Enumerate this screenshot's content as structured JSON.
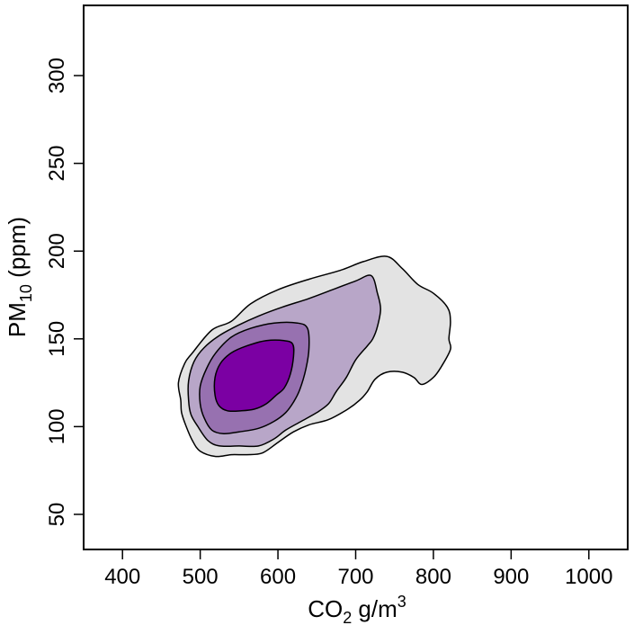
{
  "chart_data": {
    "type": "contour",
    "title": "",
    "xlabel": {
      "base": "CO",
      "sub": "2",
      "unit": " g/m",
      "sup": "3"
    },
    "ylabel": {
      "base": "PM",
      "sub": "10",
      "unit": " (ppm)"
    },
    "xlim": [
      350,
      1050
    ],
    "ylim": [
      30,
      340
    ],
    "xticks": [
      400,
      500,
      600,
      700,
      800,
      900,
      1000
    ],
    "yticks": [
      50,
      100,
      150,
      200,
      250,
      300
    ],
    "grid": false,
    "legend": "none",
    "levels": [
      {
        "fill": "#e3e3e3",
        "points": [
          [
            475,
            115
          ],
          [
            472,
            125
          ],
          [
            480,
            136
          ],
          [
            490,
            142
          ],
          [
            515,
            155
          ],
          [
            540,
            160
          ],
          [
            565,
            170
          ],
          [
            600,
            178
          ],
          [
            640,
            184
          ],
          [
            680,
            189
          ],
          [
            710,
            194
          ],
          [
            740,
            197
          ],
          [
            760,
            190
          ],
          [
            780,
            181
          ],
          [
            800,
            176
          ],
          [
            818,
            168
          ],
          [
            822,
            160
          ],
          [
            820,
            150
          ],
          [
            822,
            144
          ],
          [
            810,
            134
          ],
          [
            800,
            128
          ],
          [
            785,
            124
          ],
          [
            775,
            128
          ],
          [
            760,
            131
          ],
          [
            740,
            131
          ],
          [
            725,
            127
          ],
          [
            715,
            120
          ],
          [
            705,
            115
          ],
          [
            690,
            110
          ],
          [
            665,
            104
          ],
          [
            640,
            101
          ],
          [
            620,
            97
          ],
          [
            600,
            91
          ],
          [
            580,
            85
          ],
          [
            560,
            84
          ],
          [
            540,
            84
          ],
          [
            520,
            83
          ],
          [
            500,
            86
          ],
          [
            490,
            92
          ],
          [
            482,
            100
          ],
          [
            476,
            108
          ]
        ]
      },
      {
        "fill": "#b8a6c8",
        "points": [
          [
            485,
            115
          ],
          [
            485,
            126
          ],
          [
            492,
            137
          ],
          [
            505,
            145
          ],
          [
            525,
            152
          ],
          [
            550,
            158
          ],
          [
            575,
            163
          ],
          [
            605,
            168
          ],
          [
            640,
            173
          ],
          [
            670,
            178
          ],
          [
            700,
            183
          ],
          [
            720,
            186
          ],
          [
            728,
            176
          ],
          [
            732,
            167
          ],
          [
            728,
            157
          ],
          [
            722,
            150
          ],
          [
            715,
            146
          ],
          [
            700,
            138
          ],
          [
            688,
            128
          ],
          [
            675,
            120
          ],
          [
            665,
            113
          ],
          [
            650,
            108
          ],
          [
            630,
            103
          ],
          [
            610,
            98
          ],
          [
            595,
            93
          ],
          [
            575,
            89
          ],
          [
            550,
            89
          ],
          [
            525,
            89
          ],
          [
            510,
            92
          ],
          [
            497,
            100
          ],
          [
            488,
            107
          ]
        ]
      },
      {
        "fill": "#9771b0",
        "points": [
          [
            500,
            113
          ],
          [
            500,
            123
          ],
          [
            508,
            133
          ],
          [
            520,
            142
          ],
          [
            540,
            151
          ],
          [
            565,
            156
          ],
          [
            595,
            159
          ],
          [
            625,
            159
          ],
          [
            638,
            156
          ],
          [
            640,
            145
          ],
          [
            636,
            133
          ],
          [
            628,
            121
          ],
          [
            620,
            114
          ],
          [
            610,
            108
          ],
          [
            595,
            103
          ],
          [
            575,
            99
          ],
          [
            550,
            97
          ],
          [
            530,
            96
          ],
          [
            515,
            98
          ],
          [
            505,
            105
          ]
        ]
      },
      {
        "fill": "#7b00a3",
        "points": [
          [
            519,
            118
          ],
          [
            519,
            128
          ],
          [
            526,
            136
          ],
          [
            540,
            142
          ],
          [
            560,
            146
          ],
          [
            585,
            149
          ],
          [
            608,
            149
          ],
          [
            619,
            147
          ],
          [
            620,
            140
          ],
          [
            616,
            130
          ],
          [
            608,
            122
          ],
          [
            598,
            118
          ],
          [
            585,
            113
          ],
          [
            570,
            110
          ],
          [
            553,
            109
          ],
          [
            535,
            109
          ],
          [
            524,
            112
          ]
        ]
      }
    ]
  }
}
